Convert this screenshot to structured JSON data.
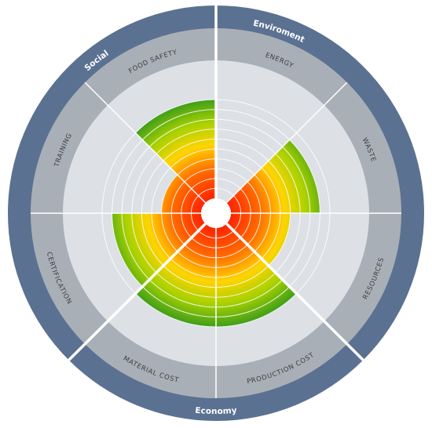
{
  "chart_data": {
    "type": "radial-bar",
    "groups": [
      {
        "name": "Enviroment",
        "categories": [
          "ENERGY",
          "WASTE",
          "RESOURCES"
        ]
      },
      {
        "name": "Economy",
        "categories": [
          "PRODUCTION COST",
          "MATERIAL COST"
        ]
      },
      {
        "name": "Social",
        "categories": [
          "CERTIFICATION",
          "TRAINING",
          "FOOD SAFETY"
        ]
      }
    ],
    "categories": [
      "ENERGY",
      "WASTE",
      "RESOURCES",
      "PRODUCTION COST",
      "MATERIAL COST",
      "CERTIFICATION",
      "TRAINING",
      "FOOD SAFETY"
    ],
    "values": [
      0,
      9,
      6,
      10,
      10,
      9,
      4,
      10
    ],
    "scale_levels": 10,
    "colors": {
      "gradient": [
        "#ff1a00",
        "#ff6a00",
        "#ffd400",
        "#a8d100",
        "#3f9e1a"
      ],
      "inner_ring": "#dde1e6",
      "mid_ring": "#a9afb7",
      "outer_ring": "#5b7191"
    }
  }
}
